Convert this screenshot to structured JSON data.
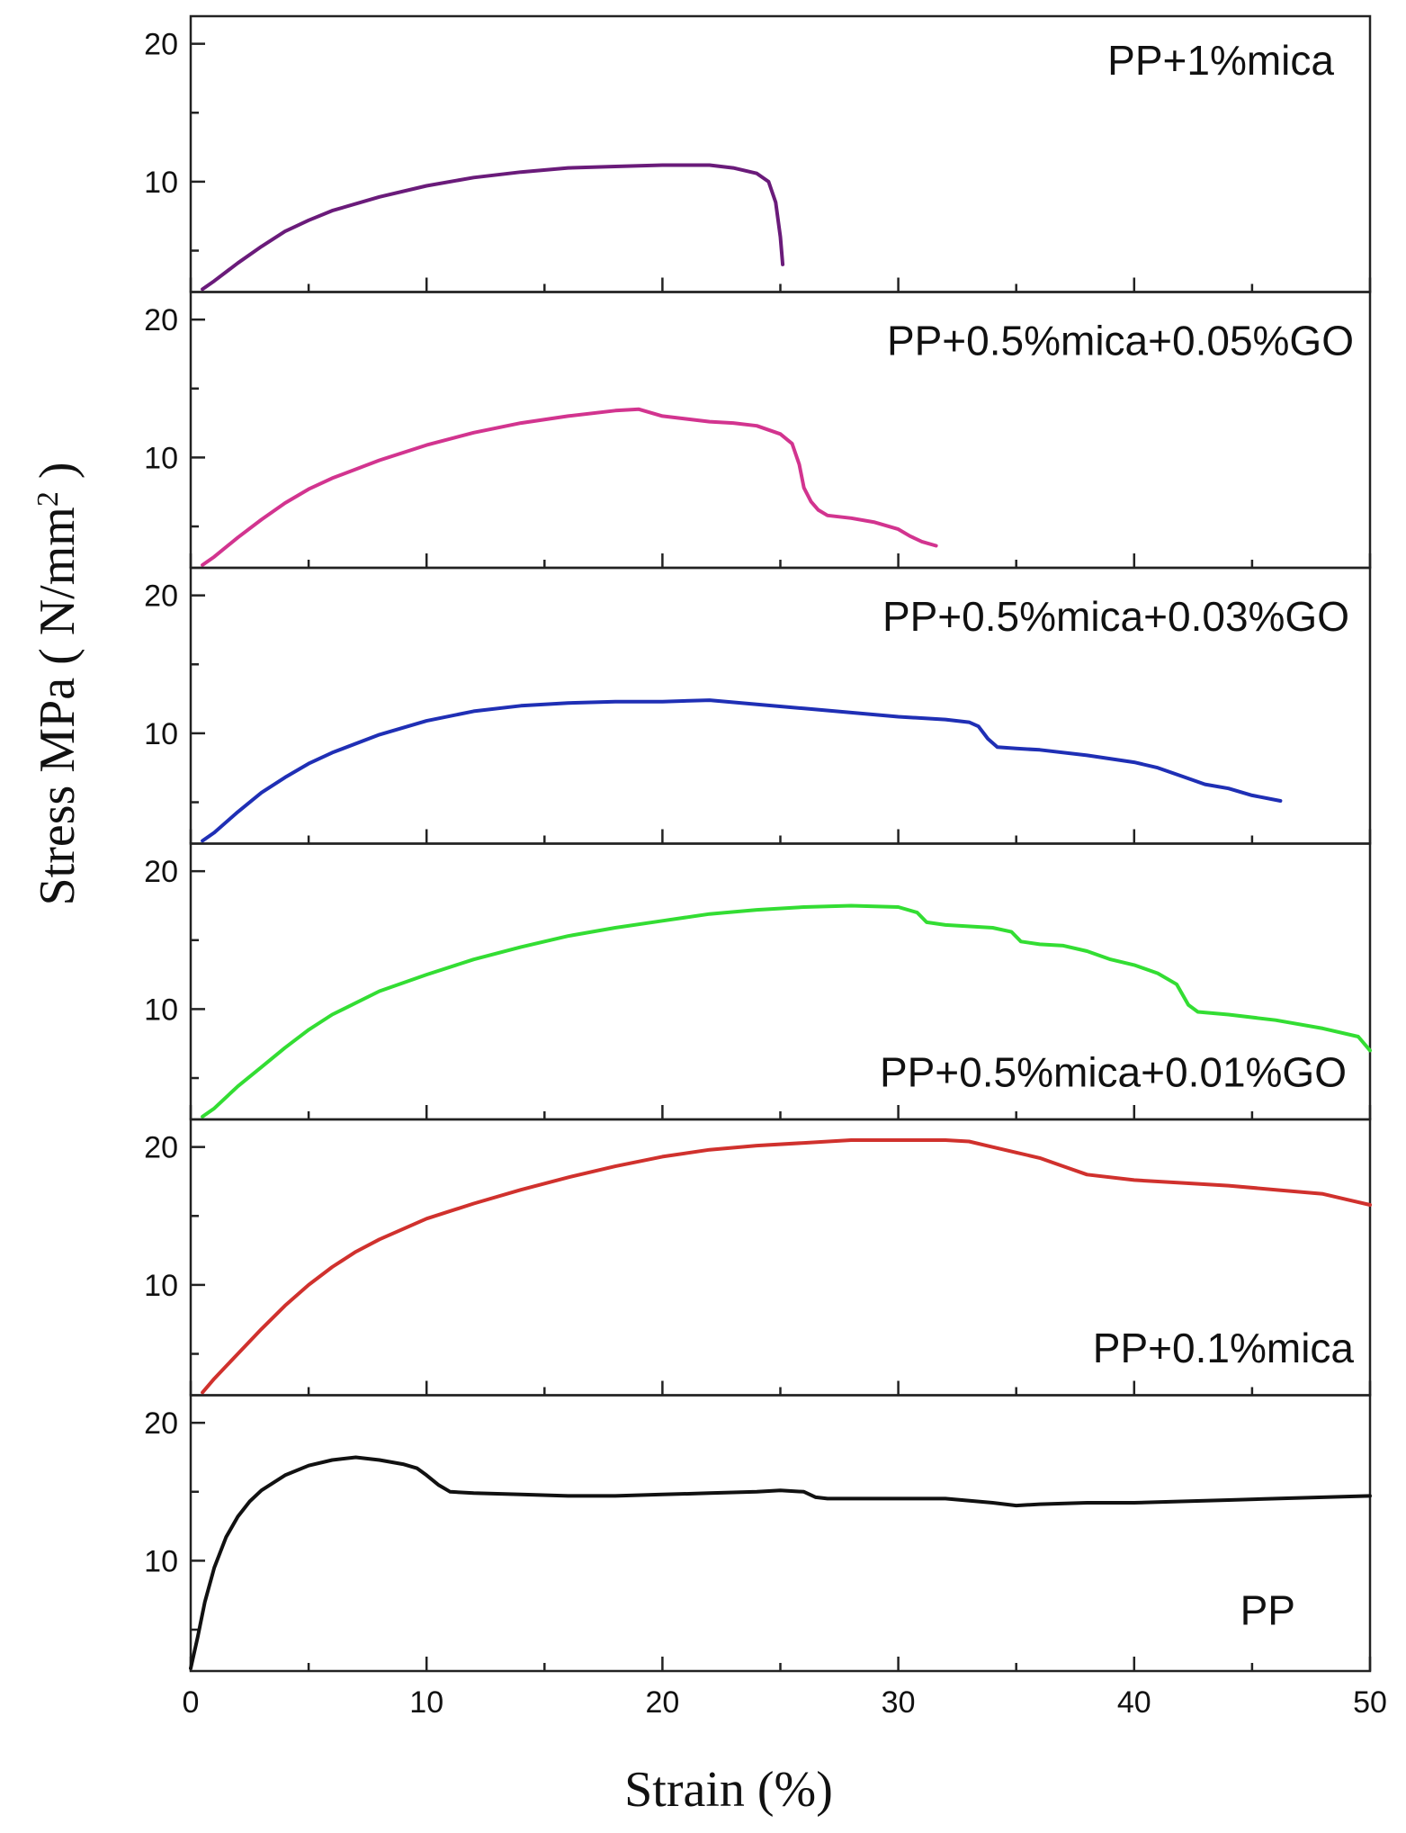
{
  "chart_data": {
    "type": "line",
    "title": "",
    "xlabel": "Strain (%)",
    "ylabel": "Stress MPa ( N/mm² )",
    "ylabel_main": "Stress MPa ( N/mm",
    "ylabel_sup": "2",
    "ylabel_close": " )",
    "xlim": [
      0,
      50
    ],
    "ylim": [
      2,
      22
    ],
    "x_ticks": [
      0,
      10,
      20,
      30,
      40,
      50
    ],
    "x_tick_labels": [
      "0",
      "10",
      "20",
      "30",
      "40",
      "50"
    ],
    "y_ticks": [
      10,
      20
    ],
    "y_tick_labels": [
      "10",
      "20"
    ],
    "grid": false,
    "series": [
      {
        "name": "PP+1%mica",
        "color": "#6a1b7a",
        "x": [
          0.5,
          1,
          2,
          3,
          4,
          5,
          6,
          8,
          10,
          12,
          14,
          16,
          18,
          20,
          21,
          22,
          23,
          24,
          24.5,
          24.8,
          25.0,
          25.1
        ],
        "y": [
          2.2,
          2.8,
          4.1,
          5.3,
          6.4,
          7.2,
          7.9,
          8.9,
          9.7,
          10.3,
          10.7,
          11.0,
          11.1,
          11.2,
          11.2,
          11.2,
          11.0,
          10.6,
          10.0,
          8.5,
          6.0,
          4.0
        ]
      },
      {
        "name": "PP+0.5%mica+0.05%GO",
        "color": "#d2348f",
        "x": [
          0.5,
          1,
          2,
          3,
          4,
          5,
          6,
          8,
          10,
          12,
          14,
          16,
          18,
          19,
          20,
          21,
          22,
          23,
          24,
          25,
          25.5,
          25.8,
          26,
          26.3,
          26.6,
          27,
          28,
          29,
          30,
          30.5,
          31,
          31.6
        ],
        "y": [
          2.2,
          2.8,
          4.2,
          5.5,
          6.7,
          7.7,
          8.5,
          9.8,
          10.9,
          11.8,
          12.5,
          13.0,
          13.4,
          13.5,
          13.0,
          12.8,
          12.6,
          12.5,
          12.3,
          11.7,
          11.0,
          9.5,
          7.8,
          6.8,
          6.2,
          5.8,
          5.6,
          5.3,
          4.8,
          4.3,
          3.9,
          3.6
        ]
      },
      {
        "name": "PP+0.5%mica+0.03%GO",
        "color": "#1f2fb5",
        "x": [
          0.5,
          1,
          2,
          3,
          4,
          5,
          6,
          8,
          10,
          12,
          14,
          16,
          18,
          20,
          22,
          24,
          26,
          28,
          30,
          32,
          33,
          33.4,
          33.8,
          34.2,
          35,
          36,
          38,
          40,
          41,
          42,
          43,
          44,
          45,
          46.2
        ],
        "y": [
          2.2,
          2.8,
          4.3,
          5.7,
          6.8,
          7.8,
          8.6,
          9.9,
          10.9,
          11.6,
          12.0,
          12.2,
          12.3,
          12.3,
          12.4,
          12.1,
          11.8,
          11.5,
          11.2,
          11.0,
          10.8,
          10.5,
          9.6,
          9.0,
          8.9,
          8.8,
          8.4,
          7.9,
          7.5,
          6.9,
          6.3,
          6.0,
          5.5,
          5.1
        ]
      },
      {
        "name": "PP+0.5%mica+0.01%GO",
        "color": "#33dd33",
        "x": [
          0.5,
          1,
          2,
          3,
          4,
          5,
          6,
          8,
          10,
          12,
          14,
          16,
          18,
          20,
          22,
          24,
          26,
          28,
          30,
          30.8,
          31.2,
          32,
          34,
          34.8,
          35.2,
          36,
          37,
          38,
          39,
          40,
          41,
          41.8,
          42.3,
          42.7,
          44,
          46,
          48,
          49.5,
          50
        ],
        "y": [
          2.2,
          2.8,
          4.4,
          5.8,
          7.2,
          8.5,
          9.6,
          11.3,
          12.5,
          13.6,
          14.5,
          15.3,
          15.9,
          16.4,
          16.9,
          17.2,
          17.4,
          17.5,
          17.4,
          17.0,
          16.3,
          16.1,
          15.9,
          15.6,
          14.9,
          14.7,
          14.6,
          14.2,
          13.6,
          13.2,
          12.6,
          11.8,
          10.3,
          9.8,
          9.6,
          9.2,
          8.6,
          8.0,
          7.0
        ]
      },
      {
        "name": "PP+0.1%mica",
        "color": "#d0312d",
        "x": [
          0.5,
          1,
          2,
          3,
          4,
          5,
          6,
          7,
          8,
          10,
          12,
          14,
          16,
          18,
          20,
          22,
          24,
          26,
          28,
          30,
          32,
          33,
          34,
          35,
          36,
          37,
          38,
          40,
          42,
          44,
          46,
          48,
          49,
          50
        ],
        "y": [
          2.2,
          3.2,
          5.0,
          6.8,
          8.5,
          10.0,
          11.3,
          12.4,
          13.3,
          14.8,
          15.9,
          16.9,
          17.8,
          18.6,
          19.3,
          19.8,
          20.1,
          20.3,
          20.5,
          20.5,
          20.5,
          20.4,
          20.0,
          19.6,
          19.2,
          18.6,
          18.0,
          17.6,
          17.4,
          17.2,
          16.9,
          16.6,
          16.2,
          15.8
        ]
      },
      {
        "name": "PP",
        "color": "#111111",
        "x": [
          0,
          0.3,
          0.6,
          1,
          1.5,
          2,
          2.5,
          3,
          4,
          5,
          6,
          7,
          8,
          9,
          9.6,
          10,
          10.5,
          11,
          12,
          14,
          16,
          18,
          20,
          22,
          24,
          25,
          26,
          26.5,
          27,
          28,
          30,
          32,
          34,
          35,
          36,
          38,
          40,
          42,
          44,
          46,
          48,
          50
        ],
        "y": [
          2.2,
          4.5,
          7.0,
          9.5,
          11.7,
          13.2,
          14.3,
          15.1,
          16.2,
          16.9,
          17.3,
          17.5,
          17.3,
          17.0,
          16.7,
          16.2,
          15.5,
          15.0,
          14.9,
          14.8,
          14.7,
          14.7,
          14.8,
          14.9,
          15.0,
          15.1,
          15.0,
          14.6,
          14.5,
          14.5,
          14.5,
          14.5,
          14.2,
          14.0,
          14.1,
          14.2,
          14.2,
          14.3,
          14.4,
          14.5,
          14.6,
          14.7
        ]
      }
    ]
  }
}
